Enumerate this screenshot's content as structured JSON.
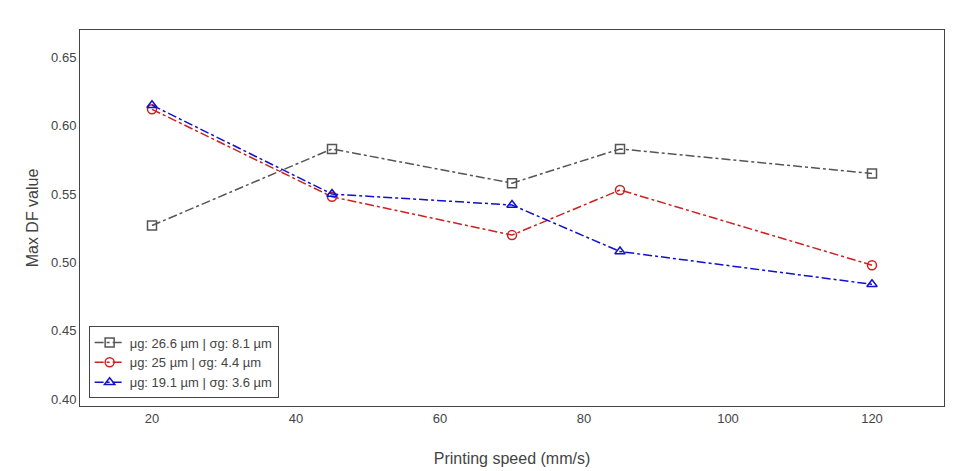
{
  "chart_data": {
    "type": "line",
    "xlabel": "Printing speed (mm/s)",
    "ylabel": "Max DF value",
    "x": [
      20,
      45,
      70,
      85,
      120
    ],
    "series": [
      {
        "name": "μg: 26.6 µm | σg: 8.1 µm",
        "color": "#555555",
        "marker": "square",
        "line_style": "dashdot",
        "values": [
          0.527,
          0.583,
          0.558,
          0.583,
          0.565
        ]
      },
      {
        "name": "μg: 25 µm | σg: 4.4 µm",
        "color": "#cc2222",
        "marker": "circle",
        "line_style": "dashdot",
        "values": [
          0.612,
          0.548,
          0.52,
          0.553,
          0.498
        ]
      },
      {
        "name": "μg: 19.1 µm | σg: 3.6 µm",
        "color": "#1111cc",
        "marker": "triangle-up",
        "line_style": "dashdot",
        "values": [
          0.615,
          0.55,
          0.542,
          0.508,
          0.484
        ]
      }
    ],
    "xlim": [
      10,
      130
    ],
    "xticks": [
      20,
      40,
      60,
      80,
      100,
      120
    ],
    "ylim": [
      0.395,
      0.67
    ],
    "yticks": [
      {
        "value": 0.4,
        "label": "0.40"
      },
      0.45,
      {
        "value": 0.5,
        "label": "0.50"
      },
      0.55,
      {
        "value": 0.6,
        "label": "0.60"
      },
      0.65
    ],
    "grid": false,
    "legend": "lower left"
  }
}
